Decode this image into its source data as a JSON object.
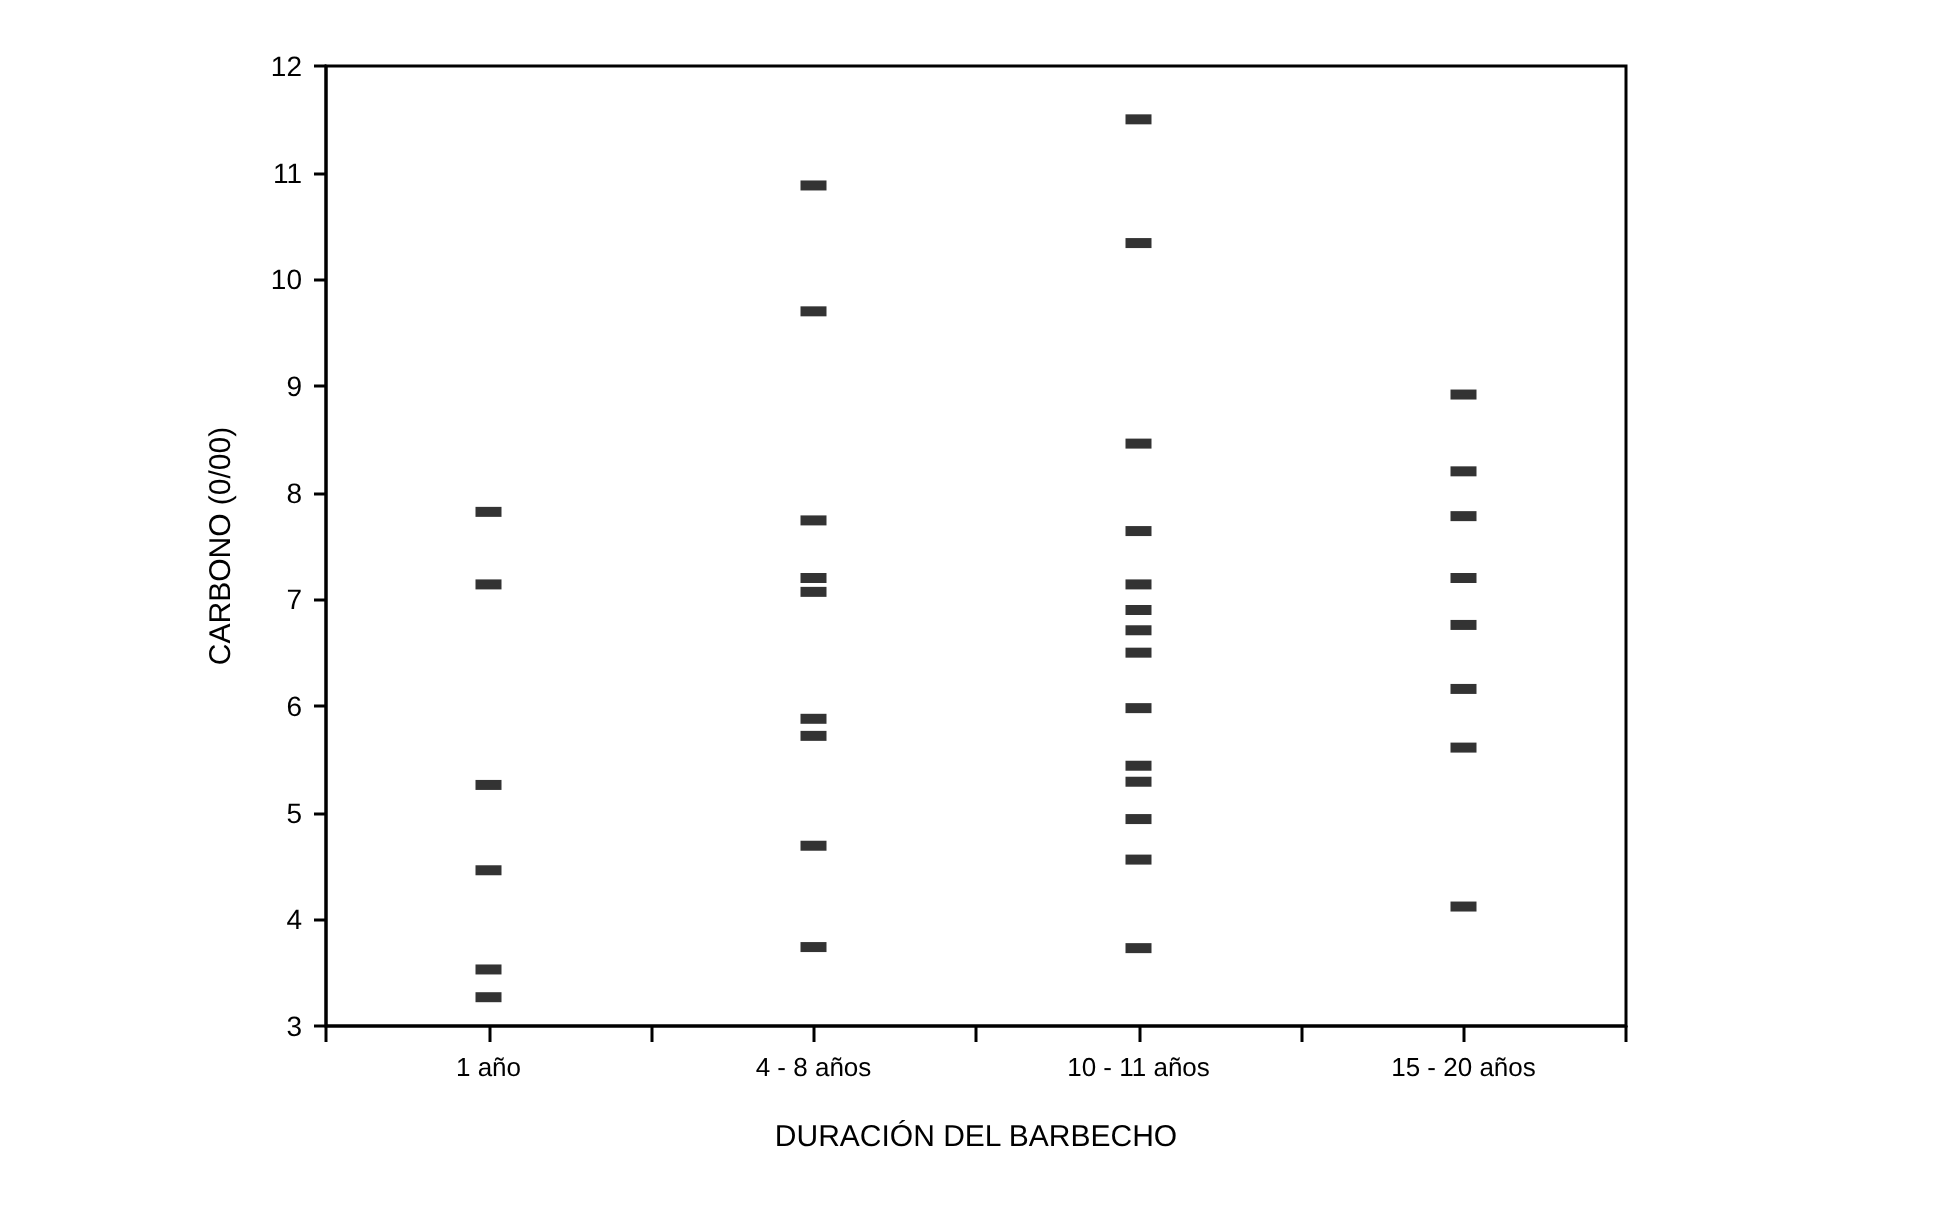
{
  "chart_data": {
    "type": "scatter",
    "xlabel": "DURACIÓN DEL BARBECHO",
    "ylabel": "CARBONO (0/00)",
    "categories": [
      "1 año",
      "4 - 8 años",
      "10 - 11 años",
      "15 - 20 años"
    ],
    "series": [
      {
        "color": "#000000",
        "x": [
          "1 año",
          "1 año",
          "1 año",
          "1 año",
          "1 año",
          "1 año",
          "4 - 8 años",
          "4 - 8 años",
          "4 - 8 años",
          "4 - 8 años",
          "4 - 8 años",
          "4 - 8 años",
          "4 - 8 años",
          "4 - 8 años",
          "4 - 8 años",
          "10 - 11 años",
          "10 - 11 años",
          "10 - 11 años",
          "10 - 11 años",
          "10 - 11 años",
          "10 - 11 años",
          "10 - 11 años",
          "10 - 11 años",
          "10 - 11 años",
          "10 - 11 años",
          "10 - 11 años",
          "10 - 11 años",
          "10 - 11 años",
          "10 - 11 años",
          "15 - 20 años",
          "15 - 20 años",
          "15 - 20 años",
          "15 - 20 años",
          "15 - 20 años",
          "15 - 20 años",
          "15 - 20 años",
          "15 - 20 años"
        ],
        "values": [
          7.82,
          7.14,
          5.26,
          4.46,
          3.53,
          3.27,
          10.88,
          9.7,
          7.74,
          7.2,
          7.07,
          5.88,
          5.72,
          4.69,
          3.74,
          11.5,
          10.34,
          8.46,
          7.64,
          7.14,
          6.9,
          6.71,
          6.5,
          5.98,
          5.44,
          5.29,
          4.94,
          4.56,
          3.73,
          8.92,
          8.2,
          7.78,
          7.2,
          6.76,
          6.16,
          5.61,
          4.12
        ]
      }
    ],
    "ylim": [
      3,
      12
    ],
    "yticks": [
      3,
      4,
      5,
      6,
      7,
      8,
      9,
      10,
      11,
      12
    ],
    "grid": false,
    "marker": "square"
  }
}
